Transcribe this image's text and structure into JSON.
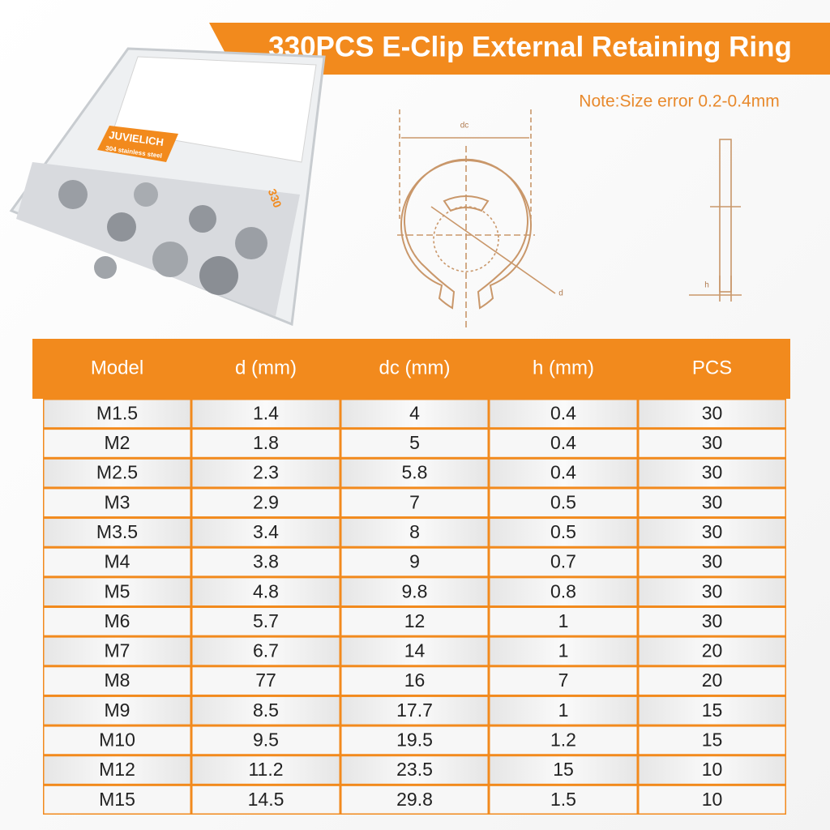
{
  "header": {
    "title": "330PCS E-Clip External Retaining Ring",
    "note": "Note:Size error 0.2-0.4mm"
  },
  "box": {
    "brand": "JUVIELICH",
    "material": "304 stainless steel",
    "count": "330"
  },
  "diagram": {
    "dc": "dc",
    "d": "d",
    "h": "h"
  },
  "table": {
    "columns": [
      "Model",
      "d (mm)",
      "dc (mm)",
      "h (mm)",
      "PCS"
    ],
    "rows": [
      [
        "M1.5",
        "1.4",
        "4",
        "0.4",
        "30"
      ],
      [
        "M2",
        "1.8",
        "5",
        "0.4",
        "30"
      ],
      [
        "M2.5",
        "2.3",
        "5.8",
        "0.4",
        "30"
      ],
      [
        "M3",
        "2.9",
        "7",
        "0.5",
        "30"
      ],
      [
        "M3.5",
        "3.4",
        "8",
        "0.5",
        "30"
      ],
      [
        "M4",
        "3.8",
        "9",
        "0.7",
        "30"
      ],
      [
        "M5",
        "4.8",
        "9.8",
        "0.8",
        "30"
      ],
      [
        "M6",
        "5.7",
        "12",
        "1",
        "30"
      ],
      [
        "M7",
        "6.7",
        "14",
        "1",
        "20"
      ],
      [
        "M8",
        "77",
        "16",
        "7",
        "20"
      ],
      [
        "M9",
        "8.5",
        "17.7",
        "1",
        "15"
      ],
      [
        "M10",
        "9.5",
        "19.5",
        "1.2",
        "15"
      ],
      [
        "M12",
        "11.2",
        "23.5",
        "15",
        "10"
      ],
      [
        "M15",
        "14.5",
        "29.8",
        "1.5",
        "10"
      ]
    ]
  }
}
